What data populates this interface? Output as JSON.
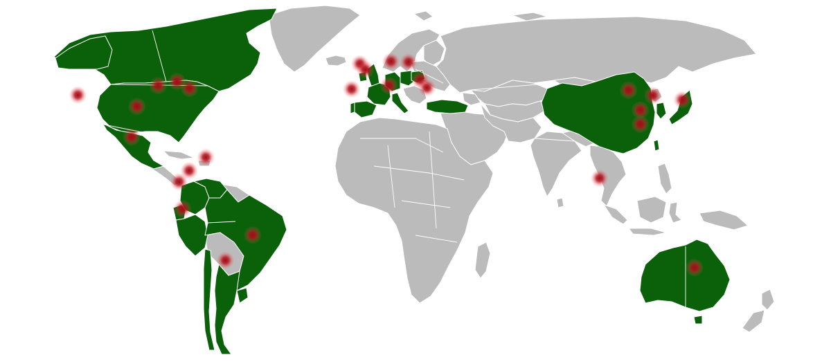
{
  "colors": {
    "background": "#ffffff",
    "land": "#bbbbbb",
    "highlighted": "#0a610a",
    "marker_core": "#9b0d16",
    "borders": "#ffffff"
  },
  "countries": [
    {
      "key": "canada",
      "state": "highlighted"
    },
    {
      "key": "usa",
      "state": "highlighted"
    },
    {
      "key": "mexico",
      "state": "highlighted"
    },
    {
      "key": "colombia",
      "state": "highlighted"
    },
    {
      "key": "venezuela",
      "state": "highlighted"
    },
    {
      "key": "ecuador",
      "state": "highlighted"
    },
    {
      "key": "peru",
      "state": "highlighted"
    },
    {
      "key": "brazil",
      "state": "highlighted"
    },
    {
      "key": "argentina",
      "state": "highlighted"
    },
    {
      "key": "uruguay",
      "state": "highlighted"
    },
    {
      "key": "chile",
      "state": "highlighted"
    },
    {
      "key": "uk",
      "state": "highlighted"
    },
    {
      "key": "ireland",
      "state": "highlighted"
    },
    {
      "key": "france",
      "state": "highlighted"
    },
    {
      "key": "spain",
      "state": "highlighted"
    },
    {
      "key": "portugal",
      "state": "highlighted"
    },
    {
      "key": "germany",
      "state": "highlighted"
    },
    {
      "key": "poland",
      "state": "highlighted"
    },
    {
      "key": "romania",
      "state": "highlighted"
    },
    {
      "key": "italy",
      "state": "highlighted"
    },
    {
      "key": "turkey",
      "state": "highlighted"
    },
    {
      "key": "china",
      "state": "highlighted"
    },
    {
      "key": "south-korea",
      "state": "highlighted"
    },
    {
      "key": "japan",
      "state": "highlighted"
    },
    {
      "key": "taiwan",
      "state": "highlighted"
    },
    {
      "key": "australia",
      "state": "highlighted"
    }
  ],
  "markers": [
    {
      "key": "san-francisco",
      "lon": -122.4,
      "lat": 37.8
    },
    {
      "key": "dallas",
      "lon": -96.8,
      "lat": 32.8
    },
    {
      "key": "chicago",
      "lon": -87.6,
      "lat": 41.9
    },
    {
      "key": "toronto",
      "lon": -79.4,
      "lat": 43.7
    },
    {
      "key": "new-york",
      "lon": -74.0,
      "lat": 40.7
    },
    {
      "key": "mexico-city",
      "lon": -99.1,
      "lat": 19.4
    },
    {
      "key": "caracas",
      "lon": -66.9,
      "lat": 10.5
    },
    {
      "key": "bogota",
      "lon": -74.1,
      "lat": 4.7
    },
    {
      "key": "quito",
      "lon": -78.5,
      "lat": -0.2
    },
    {
      "key": "lima",
      "lon": -77.0,
      "lat": -12.0
    },
    {
      "key": "sao-paulo",
      "lon": -46.6,
      "lat": -23.5
    },
    {
      "key": "buenos-aires",
      "lon": -58.4,
      "lat": -34.6
    },
    {
      "key": "london",
      "lon": -0.1,
      "lat": 51.5
    },
    {
      "key": "paris",
      "lon": 2.3,
      "lat": 48.9
    },
    {
      "key": "madrid",
      "lon": -3.7,
      "lat": 40.4
    },
    {
      "key": "berlin",
      "lon": 13.4,
      "lat": 52.5
    },
    {
      "key": "warsaw",
      "lon": 21.0,
      "lat": 52.2
    },
    {
      "key": "bucharest",
      "lon": 26.1,
      "lat": 44.4
    },
    {
      "key": "rome",
      "lon": 12.5,
      "lat": 41.9
    },
    {
      "key": "istanbul",
      "lon": 29.0,
      "lat": 41.0
    },
    {
      "key": "beijing",
      "lon": 116.4,
      "lat": 39.9
    },
    {
      "key": "seoul",
      "lon": 127.0,
      "lat": 37.6
    },
    {
      "key": "tokyo",
      "lon": 139.7,
      "lat": 35.7
    },
    {
      "key": "shanghai",
      "lon": 121.5,
      "lat": 31.2
    },
    {
      "key": "taipei",
      "lon": 121.5,
      "lat": 25.0
    },
    {
      "key": "singapore",
      "lon": 103.8,
      "lat": 1.35
    },
    {
      "key": "melbourne",
      "lon": 145.0,
      "lat": -37.8
    }
  ]
}
